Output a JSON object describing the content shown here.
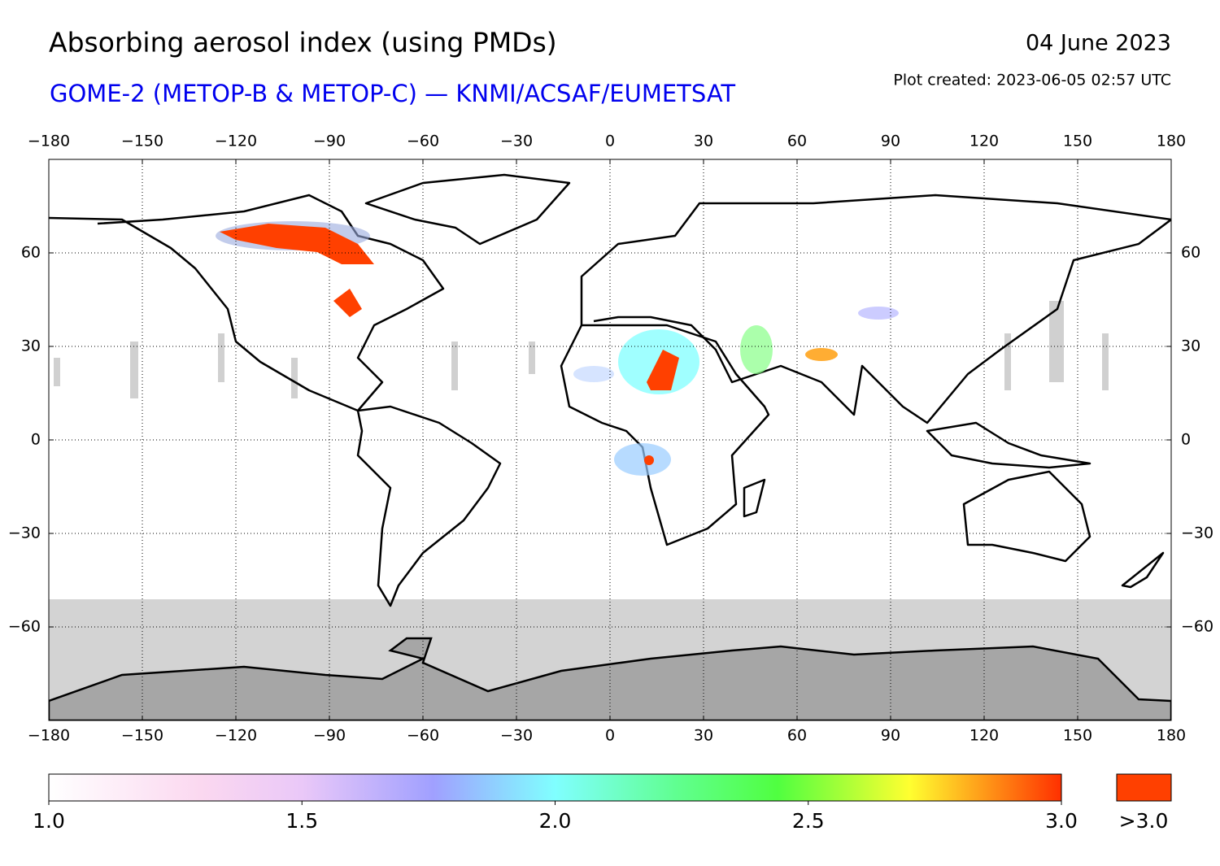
{
  "header": {
    "title": "Absorbing aerosol index (using PMDs)",
    "subtitle": "GOME-2 (METOP-B & METOP-C) — KNMI/ACSAF/EUMETSAT",
    "date": "04 June 2023",
    "plot_created": "Plot created: 2023-06-05 02:57 UTC"
  },
  "map": {
    "xlim": [
      -180,
      180
    ],
    "ylim": [
      -90,
      90
    ],
    "xticks": [
      {
        "value": -180,
        "label": "−180"
      },
      {
        "value": -150,
        "label": "−150"
      },
      {
        "value": -120,
        "label": "−120"
      },
      {
        "value": -90,
        "label": "−90"
      },
      {
        "value": -60,
        "label": "−60"
      },
      {
        "value": -30,
        "label": "−30"
      },
      0,
      30,
      60,
      90,
      120,
      150,
      180
    ],
    "yticks": [
      {
        "value": -60,
        "label": "−60"
      },
      {
        "value": -30,
        "label": "−30"
      },
      0,
      30,
      60
    ],
    "grid": true
  },
  "colorbar": {
    "lim": [
      1,
      3
    ],
    "ticks": [
      {
        "value": 1,
        "label": "1.0"
      },
      {
        "value": 1.5,
        "label": "1.5"
      },
      {
        "value": 2,
        "label": "2.0"
      },
      {
        "value": 2.5,
        "label": "2.5"
      },
      {
        "value": 3,
        "label": "3.0"
      }
    ],
    "overflow_label": ">3.0",
    "overflow_color": "#ff4000"
  }
}
